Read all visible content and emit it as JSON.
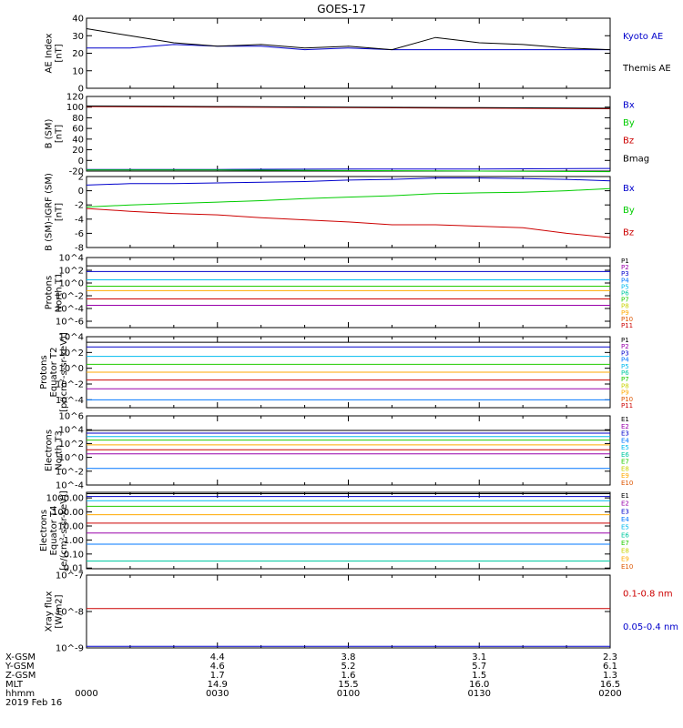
{
  "title": "GOES-17",
  "colors": {
    "black": "#000000",
    "blue": "#0000cc",
    "green": "#00cc00",
    "red": "#cc0000",
    "channels": [
      "#000000",
      "#9900aa",
      "#0000cc",
      "#0077ff",
      "#00bbee",
      "#00c8a0",
      "#22cc00",
      "#c8d200",
      "#ffaa00",
      "#dd5500",
      "#cc0000"
    ]
  },
  "time_axis": {
    "rows": [
      {
        "label": "X-GSM",
        "values": [
          "4.4",
          "3.8",
          "3.1",
          "2.3"
        ]
      },
      {
        "label": "Y-GSM",
        "values": [
          "4.6",
          "5.2",
          "5.7",
          "6.1"
        ]
      },
      {
        "label": "Z-GSM",
        "values": [
          "1.7",
          "1.6",
          "1.5",
          "1.3"
        ]
      },
      {
        "label": "MLT",
        "values": [
          "14.9",
          "15.5",
          "16.0",
          "16.5"
        ]
      },
      {
        "label": "hhmm",
        "values": [
          "0000",
          "0030",
          "0100",
          "0130",
          "0200"
        ]
      }
    ],
    "date": "2019 Feb 16"
  },
  "chart_data": [
    {
      "type": "line",
      "ylabel": [
        "AE Index",
        "[nT]"
      ],
      "ylim": [
        0,
        40
      ],
      "yticks": [
        "0",
        "10",
        "20",
        "30",
        "40"
      ],
      "x": [
        0,
        10,
        20,
        30,
        40,
        50,
        60,
        70,
        80,
        90,
        100,
        110,
        120
      ],
      "series": [
        {
          "name": "Kyoto AE",
          "color": "blue",
          "values": [
            23,
            23,
            25,
            24,
            24,
            22,
            23,
            22,
            22,
            22,
            22,
            22,
            22
          ]
        },
        {
          "name": "Themis AE",
          "color": "black",
          "values": [
            34,
            30,
            26,
            24,
            25,
            23,
            24,
            22,
            29,
            26,
            25,
            23,
            22
          ]
        }
      ],
      "legend": [
        {
          "text": "Kyoto AE",
          "color": "blue"
        },
        {
          "text": "Themis AE",
          "color": "black"
        }
      ]
    },
    {
      "type": "line",
      "ylabel": [
        "B (SM)",
        "[nT]"
      ],
      "ylim": [
        -20,
        120
      ],
      "yticks": [
        "-20",
        "0",
        "20",
        "40",
        "60",
        "80",
        "100",
        "120"
      ],
      "x": [
        0,
        30,
        60,
        90,
        120
      ],
      "series": [
        {
          "name": "Bx",
          "color": "blue",
          "values": [
            -17,
            -17,
            -16,
            -16,
            -15
          ]
        },
        {
          "name": "By",
          "color": "green",
          "values": [
            -18,
            -18,
            -19,
            -20,
            -21
          ]
        },
        {
          "name": "Bz",
          "color": "red",
          "values": [
            101,
            100,
            99,
            98,
            97
          ]
        },
        {
          "name": "Bmag",
          "color": "black",
          "values": [
            102,
            101,
            100,
            99,
            98
          ]
        }
      ],
      "legend": [
        {
          "text": "Bx",
          "color": "blue"
        },
        {
          "text": "By",
          "color": "green"
        },
        {
          "text": "Bz",
          "color": "red"
        },
        {
          "text": "Bmag",
          "color": "black"
        }
      ]
    },
    {
      "type": "line",
      "ylabel": [
        "B (SM)-IGRF (SM)",
        "[nT]"
      ],
      "ylim": [
        -8,
        2
      ],
      "yticks": [
        "-8",
        "-6",
        "-4",
        "-2",
        "0",
        "2"
      ],
      "x": [
        0,
        10,
        20,
        30,
        40,
        50,
        60,
        70,
        80,
        90,
        100,
        110,
        120
      ],
      "series": [
        {
          "name": "Bx",
          "color": "blue",
          "values": [
            0.8,
            1.0,
            1.0,
            1.1,
            1.2,
            1.3,
            1.5,
            1.6,
            1.8,
            1.8,
            1.7,
            1.6,
            1.4
          ]
        },
        {
          "name": "By",
          "color": "green",
          "values": [
            -2.3,
            -2.0,
            -1.8,
            -1.6,
            -1.4,
            -1.1,
            -0.9,
            -0.7,
            -0.4,
            -0.3,
            -0.2,
            0.0,
            0.3
          ]
        },
        {
          "name": "Bz",
          "color": "red",
          "values": [
            -2.5,
            -2.9,
            -3.2,
            -3.4,
            -3.8,
            -4.1,
            -4.4,
            -4.8,
            -4.8,
            -5.0,
            -5.2,
            -6.0,
            -6.6
          ]
        }
      ],
      "legend": [
        {
          "text": "Bx",
          "color": "blue"
        },
        {
          "text": "By",
          "color": "green"
        },
        {
          "text": "Bz",
          "color": "red"
        }
      ]
    },
    {
      "type": "line",
      "log": true,
      "ylabel": [
        "Protons",
        "North T1"
      ],
      "ylim": [
        -7,
        4
      ],
      "yticks": [
        "10^4",
        "10^2",
        "10^0",
        "10^-2",
        "10^-4",
        "10^-6"
      ],
      "levels": [
        2.7,
        1.8,
        0.5,
        -0.5,
        -1.2,
        -2.5,
        -3.5
      ],
      "legend": [
        "P1",
        "P2",
        "P3",
        "P4",
        "P5",
        "P6",
        "P7",
        "P8",
        "P9",
        "P10",
        "P11"
      ]
    },
    {
      "type": "line",
      "log": true,
      "ylabel": [
        "Protons",
        "Equator T2",
        "[p/(cm²-s-sr-keV)]"
      ],
      "ylim": [
        -5,
        4
      ],
      "yticks": [
        "10^4",
        "10^2",
        "10^0",
        "10^-2",
        "10^-4"
      ],
      "levels": [
        3.3,
        2.7,
        1.5,
        0.5,
        -0.5,
        -1.5,
        -2.6,
        -4.0
      ],
      "legend": [
        "P1",
        "P2",
        "P3",
        "P4",
        "P5",
        "P6",
        "P7",
        "P8",
        "P9",
        "P10",
        "P11"
      ]
    },
    {
      "type": "line",
      "log": true,
      "ylabel": [
        "Electrons",
        "North T3"
      ],
      "ylim": [
        -4,
        6
      ],
      "yticks": [
        "10^6",
        "10^4",
        "10^2",
        "10^0",
        "10^-2",
        "10^-4"
      ],
      "levels": [
        3.9,
        3.5,
        3.0,
        2.5,
        1.8,
        1.1,
        0.5,
        -1.6
      ],
      "legend": [
        "E1",
        "E2",
        "E3",
        "E4",
        "E5",
        "E6",
        "E7",
        "E8",
        "E9",
        "E10"
      ]
    },
    {
      "type": "line",
      "log": true,
      "ylabel": [
        "Electrons",
        "Equator T4",
        "[e/(cm²-s-sr-keV)]"
      ],
      "ylim": [
        -2.05,
        3.4
      ],
      "yticks": [
        "1000.00",
        "100.00",
        "10.00",
        "1.00",
        "0.10",
        "0.01"
      ],
      "levels": [
        3.3,
        3.1,
        2.8,
        2.4,
        1.8,
        1.2,
        0.5,
        -0.3,
        -1.5
      ],
      "legend": [
        "E1",
        "E2",
        "E3",
        "E4",
        "E5",
        "E6",
        "E7",
        "E8",
        "E9",
        "E10"
      ]
    },
    {
      "type": "line",
      "log": true,
      "ylabel": [
        "Xray flux",
        "[W/m2]"
      ],
      "ylim": [
        -9,
        -7
      ],
      "yticks": [
        "10^-7",
        "10^-8",
        "10^-9"
      ],
      "series": [
        {
          "name": "0.1-0.8 nm",
          "color": "red",
          "values": [
            1.2e-08,
            1.2e-08
          ]
        },
        {
          "name": "0.05-0.4 nm",
          "color": "blue",
          "values": [
            1.1e-09,
            1.1e-09
          ]
        }
      ],
      "legend": [
        {
          "text": "0.1-0.8 nm",
          "color": "red"
        },
        {
          "text": "0.05-0.4 nm",
          "color": "blue"
        }
      ]
    }
  ]
}
